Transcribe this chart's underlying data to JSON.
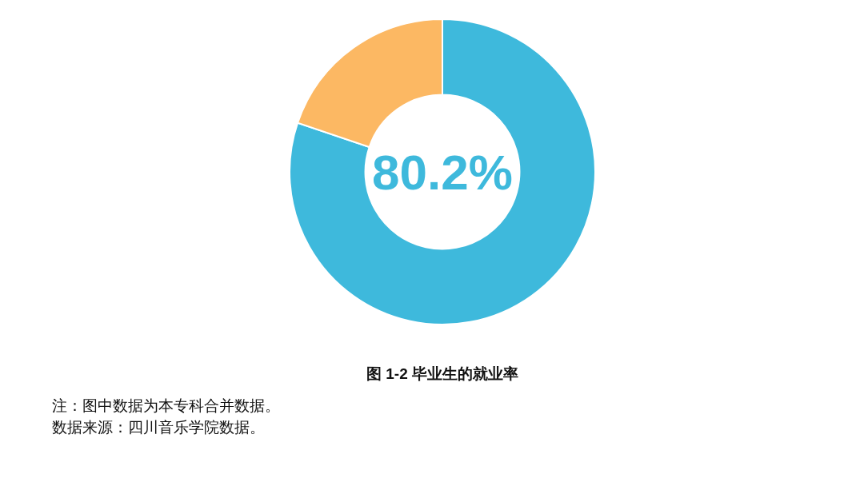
{
  "chart_data": {
    "type": "donut",
    "title": "图 1-2 毕业生的就业率",
    "categories": [
      null,
      null
    ],
    "values": [
      80.2,
      19.8
    ],
    "colors": [
      "#3eb9dc",
      "#fcb863"
    ],
    "value_labels": [
      "80.2%",
      null
    ],
    "annotations": [
      "注：图中数据为本专科合并数据。",
      "数据来源：四川音乐学院数据。"
    ]
  }
}
